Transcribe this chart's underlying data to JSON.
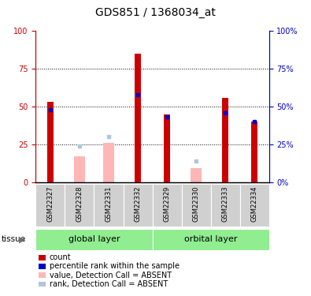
{
  "title": "GDS851 / 1368034_at",
  "samples": [
    "GSM22327",
    "GSM22328",
    "GSM22331",
    "GSM22332",
    "GSM22329",
    "GSM22330",
    "GSM22333",
    "GSM22334"
  ],
  "red_bars": [
    53,
    0,
    0,
    85,
    45,
    0,
    56,
    40
  ],
  "blue_dots": [
    48,
    0,
    0,
    58,
    43,
    0,
    46,
    40
  ],
  "pink_bars": [
    0,
    17,
    26,
    0,
    0,
    9,
    0,
    0
  ],
  "lightblue_dots": [
    0,
    24,
    30,
    0,
    0,
    14,
    0,
    0
  ],
  "ylim": [
    0,
    100
  ],
  "yticks": [
    0,
    25,
    50,
    75,
    100
  ],
  "grid_lines": [
    25,
    50,
    75
  ],
  "left_axis_color": "#cc0000",
  "right_axis_color": "#0000cc",
  "group_names": [
    "global layer",
    "orbital layer"
  ],
  "group_starts": [
    0,
    4
  ],
  "group_ends": [
    4,
    8
  ],
  "group_color": "#90EE90",
  "sample_box_color": "#d0d0d0",
  "tissue_label": "tissue",
  "legend_items": [
    {
      "label": "count",
      "color": "#cc0000"
    },
    {
      "label": "percentile rank within the sample",
      "color": "#0000cc"
    },
    {
      "label": "value, Detection Call = ABSENT",
      "color": "#ffb6b6"
    },
    {
      "label": "rank, Detection Call = ABSENT",
      "color": "#b0c4de"
    }
  ],
  "title_fontsize": 10,
  "tick_fontsize": 7,
  "sample_fontsize": 6,
  "legend_fontsize": 7,
  "tissue_fontsize": 7.5,
  "group_fontsize": 8
}
